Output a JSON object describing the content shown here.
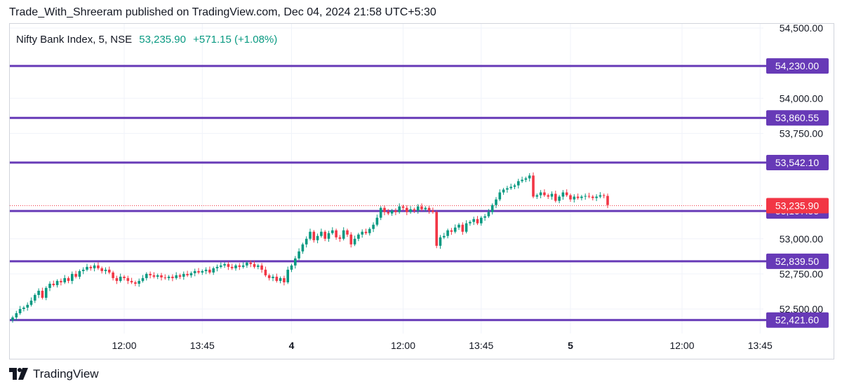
{
  "header": {
    "published_text": "Trade_With_Shreeram published on TradingView.com, Dec 04, 2024 21:58 UTC+5:30"
  },
  "legend": {
    "symbol": "Nifty Bank Index, 5, NSE",
    "last": "53,235.90",
    "change": "+571.15 (+1.08%)"
  },
  "footer": {
    "logo_text": "TradingView"
  },
  "colors": {
    "up": "#089981",
    "down": "#f23645",
    "level_line": "#673ab7",
    "price_label_bg": "#f23645",
    "grid": "#f0f3fa"
  },
  "chart_data": {
    "type": "candlestick",
    "title": "Nifty Bank Index, 5, NSE",
    "y_axis": {
      "ylim": [
        52375,
        54560
      ],
      "ticks": [
        "54,500.00",
        "54,000.00",
        "53,750.00",
        "53,000.00",
        "52,750.00",
        "52,500.00"
      ],
      "tick_values": [
        54500,
        54000,
        53750,
        53000,
        52750,
        52500
      ],
      "side": "right"
    },
    "x_axis": {
      "ticks": [
        {
          "label": "12:00",
          "bar": 30,
          "bold": false
        },
        {
          "label": "13:45",
          "bar": 51,
          "bold": false
        },
        {
          "label": "4",
          "bar": 75,
          "bold": true
        },
        {
          "label": "12:00",
          "bar": 105,
          "bold": false
        },
        {
          "label": "13:45",
          "bar": 126,
          "bold": false
        },
        {
          "label": "5",
          "bar": 150,
          "bold": true
        },
        {
          "label": "12:00",
          "bar": 180,
          "bold": false
        },
        {
          "label": "13:45",
          "bar": 201,
          "bold": false
        }
      ]
    },
    "horizontal_levels": [
      54230.0,
      53860.55,
      53542.1,
      53197.55,
      52839.5,
      52421.6
    ],
    "horizontal_level_labels": [
      "54,230.00",
      "53,860.55",
      "53,542.10",
      "53,197.55",
      "52,839.50",
      "52,421.60"
    ],
    "last_price": 53235.9,
    "last_price_label": "53,235.90",
    "close": [
      52440,
      52470,
      52500,
      52510,
      52530,
      52560,
      52600,
      52630,
      52580,
      52650,
      52680,
      52670,
      52700,
      52690,
      52720,
      52700,
      52750,
      52730,
      52770,
      52780,
      52800,
      52790,
      52810,
      52790,
      52770,
      52780,
      52760,
      52720,
      52700,
      52730,
      52720,
      52700,
      52690,
      52680,
      52700,
      52720,
      52750,
      52740,
      52730,
      52740,
      52725,
      52720,
      52730,
      52720,
      52740,
      52730,
      52750,
      52740,
      52755,
      52770,
      52760,
      52770,
      52780,
      52760,
      52790,
      52800,
      52810,
      52820,
      52800,
      52790,
      52810,
      52800,
      52810,
      52830,
      52820,
      52800,
      52810,
      52780,
      52740,
      52720,
      52730,
      52700,
      52720,
      52690,
      52780,
      52810,
      52860,
      52910,
      52960,
      53000,
      53050,
      52990,
      53020,
      53050,
      53000,
      53040,
      53060,
      53010,
      53000,
      53060,
      53030,
      52960,
      53000,
      53030,
      53050,
      53040,
      53070,
      53100,
      53150,
      53220,
      53190,
      53180,
      53200,
      53190,
      53230,
      53220,
      53190,
      53210,
      53200,
      53230,
      53210,
      53220,
      53200,
      53190,
      52950,
      53010,
      53020,
      53060,
      53050,
      53080,
      53100,
      53050,
      53110,
      53120,
      53140,
      53110,
      53150,
      53160,
      53190,
      53240,
      53280,
      53330,
      53350,
      53360,
      53370,
      53380,
      53410,
      53420,
      53430,
      53450,
      53300,
      53310,
      53330,
      53310,
      53300,
      53320,
      53270,
      53300,
      53330,
      53310,
      53280,
      53300,
      53290,
      53300,
      53305,
      53300,
      53290,
      53300,
      53310,
      53305,
      53240
    ]
  }
}
